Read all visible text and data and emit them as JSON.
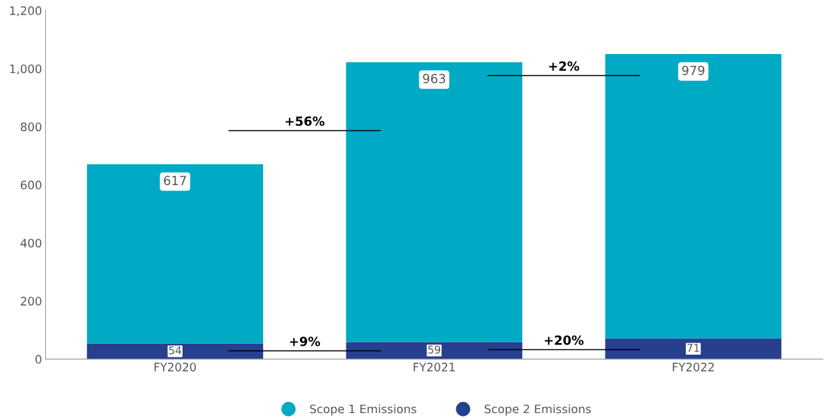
{
  "chart_data": {
    "type": "bar",
    "stacked": true,
    "categories": [
      "FY2020",
      "FY2021",
      "FY2022"
    ],
    "series": [
      {
        "name": "Scope 2 Emissions",
        "color": "#263f8f",
        "values": [
          54,
          59,
          71
        ]
      },
      {
        "name": "Scope 1 Emissions",
        "color": "#00a9c4",
        "values": [
          617,
          963,
          979
        ]
      }
    ],
    "ylim": [
      0,
      1200
    ],
    "yticks": [
      0,
      200,
      400,
      600,
      800,
      {
        "value": 1000,
        "label": "1,000"
      },
      {
        "value": 1200,
        "label": "1,200"
      }
    ],
    "data_labels": true,
    "grid": false,
    "legend": "bottom",
    "annotations": [
      "+56%",
      "+2%",
      "+9%",
      "+20%"
    ]
  }
}
